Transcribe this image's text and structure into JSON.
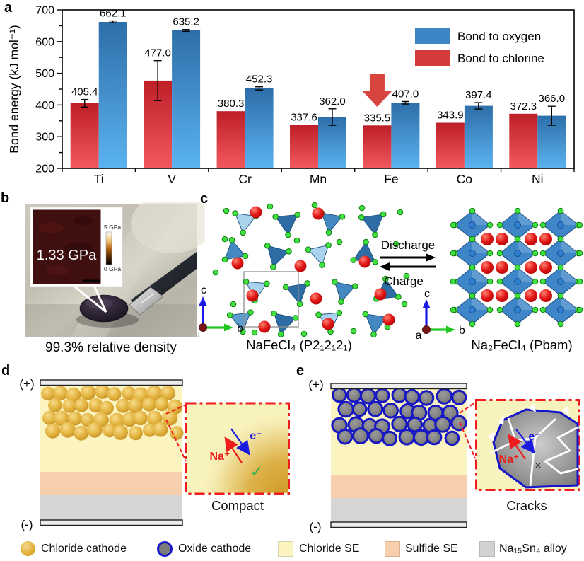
{
  "panels": {
    "a": {
      "label": "a"
    },
    "b": {
      "label": "b",
      "inset_value": "1.33 GPa",
      "colorbar_top": "5 GPa",
      "colorbar_bottom": "0 GPa",
      "caption": "99.3% relative density"
    },
    "c": {
      "label": "c",
      "left_caption": "NaFeCl₄ (P2₁2₁2₁)",
      "right_caption": "Na₂FeCl₄ (Pbam)",
      "forward_label": "Discharge",
      "reverse_label": "Charge",
      "axes": {
        "a": "a",
        "b": "b",
        "c": "c"
      }
    },
    "d": {
      "label": "d",
      "positive": "(+)",
      "negative": "(-)",
      "ion_label": "Na⁺",
      "electron_label": "e⁻",
      "check_mark": "✓",
      "caption": "Compact"
    },
    "e": {
      "label": "e",
      "positive": "(+)",
      "negative": "(-)",
      "ion_label": "Na⁺",
      "electron_label": "e⁻",
      "cross_mark": "×",
      "caption": "Cracks"
    }
  },
  "chart_data": {
    "type": "bar",
    "title": "",
    "categories": [
      "Ti",
      "V",
      "Cr",
      "Mn",
      "Fe",
      "Co",
      "Ni"
    ],
    "series": [
      {
        "name": "Bond to oxygen",
        "color": "#3d86c5",
        "gradient": [
          "#2d6ea9",
          "#5bb3f0"
        ],
        "values": [
          662.1,
          635.2,
          452.3,
          362.0,
          407.0,
          397.4,
          366.0
        ],
        "labels": [
          "662.1",
          "635.2",
          "452.3",
          "362.0",
          "407.0",
          "397.4",
          "366.0"
        ],
        "errors": [
          3,
          3,
          5,
          26,
          4,
          10,
          30
        ]
      },
      {
        "name": "Bond to chlorine",
        "color": "#d53b3a",
        "gradient": [
          "#bd1f27",
          "#f2595e"
        ],
        "values": [
          405.4,
          477.0,
          380.3,
          337.6,
          335.5,
          343.9,
          372.3
        ],
        "labels": [
          "405.4",
          "477.0",
          "380.3",
          "337.6",
          "335.5",
          "343.9",
          "372.3"
        ],
        "errors": [
          12,
          63,
          0,
          0,
          0,
          0,
          0
        ]
      }
    ],
    "ylabel": "Bond energy (kJ mol⁻¹)",
    "ylim": [
      200,
      700
    ],
    "yticks": [
      200,
      300,
      400,
      500,
      600,
      700
    ],
    "grid": false,
    "legend_position": "top-right",
    "annotation": {
      "type": "down-arrow",
      "category": "Fe",
      "series": "Bond to chlorine",
      "color": "#d8453f"
    }
  },
  "bottom_legend": {
    "items": [
      {
        "label": "Chloride cathode",
        "swatch": "gold-circle",
        "color": "#dfae35"
      },
      {
        "label": "Oxide cathode",
        "swatch": "grey-circle-blue-ring",
        "color": "#7b7b7b",
        "ring_color": "#1818c8"
      },
      {
        "label": "Chloride SE",
        "swatch": "square",
        "color": "#fbf4c0"
      },
      {
        "label": "Sulfide SE",
        "swatch": "square",
        "color": "#f7cfad"
      },
      {
        "label": "Na₁₅Sn₄ alloy",
        "swatch": "square",
        "color": "#d2d2d2"
      }
    ]
  }
}
